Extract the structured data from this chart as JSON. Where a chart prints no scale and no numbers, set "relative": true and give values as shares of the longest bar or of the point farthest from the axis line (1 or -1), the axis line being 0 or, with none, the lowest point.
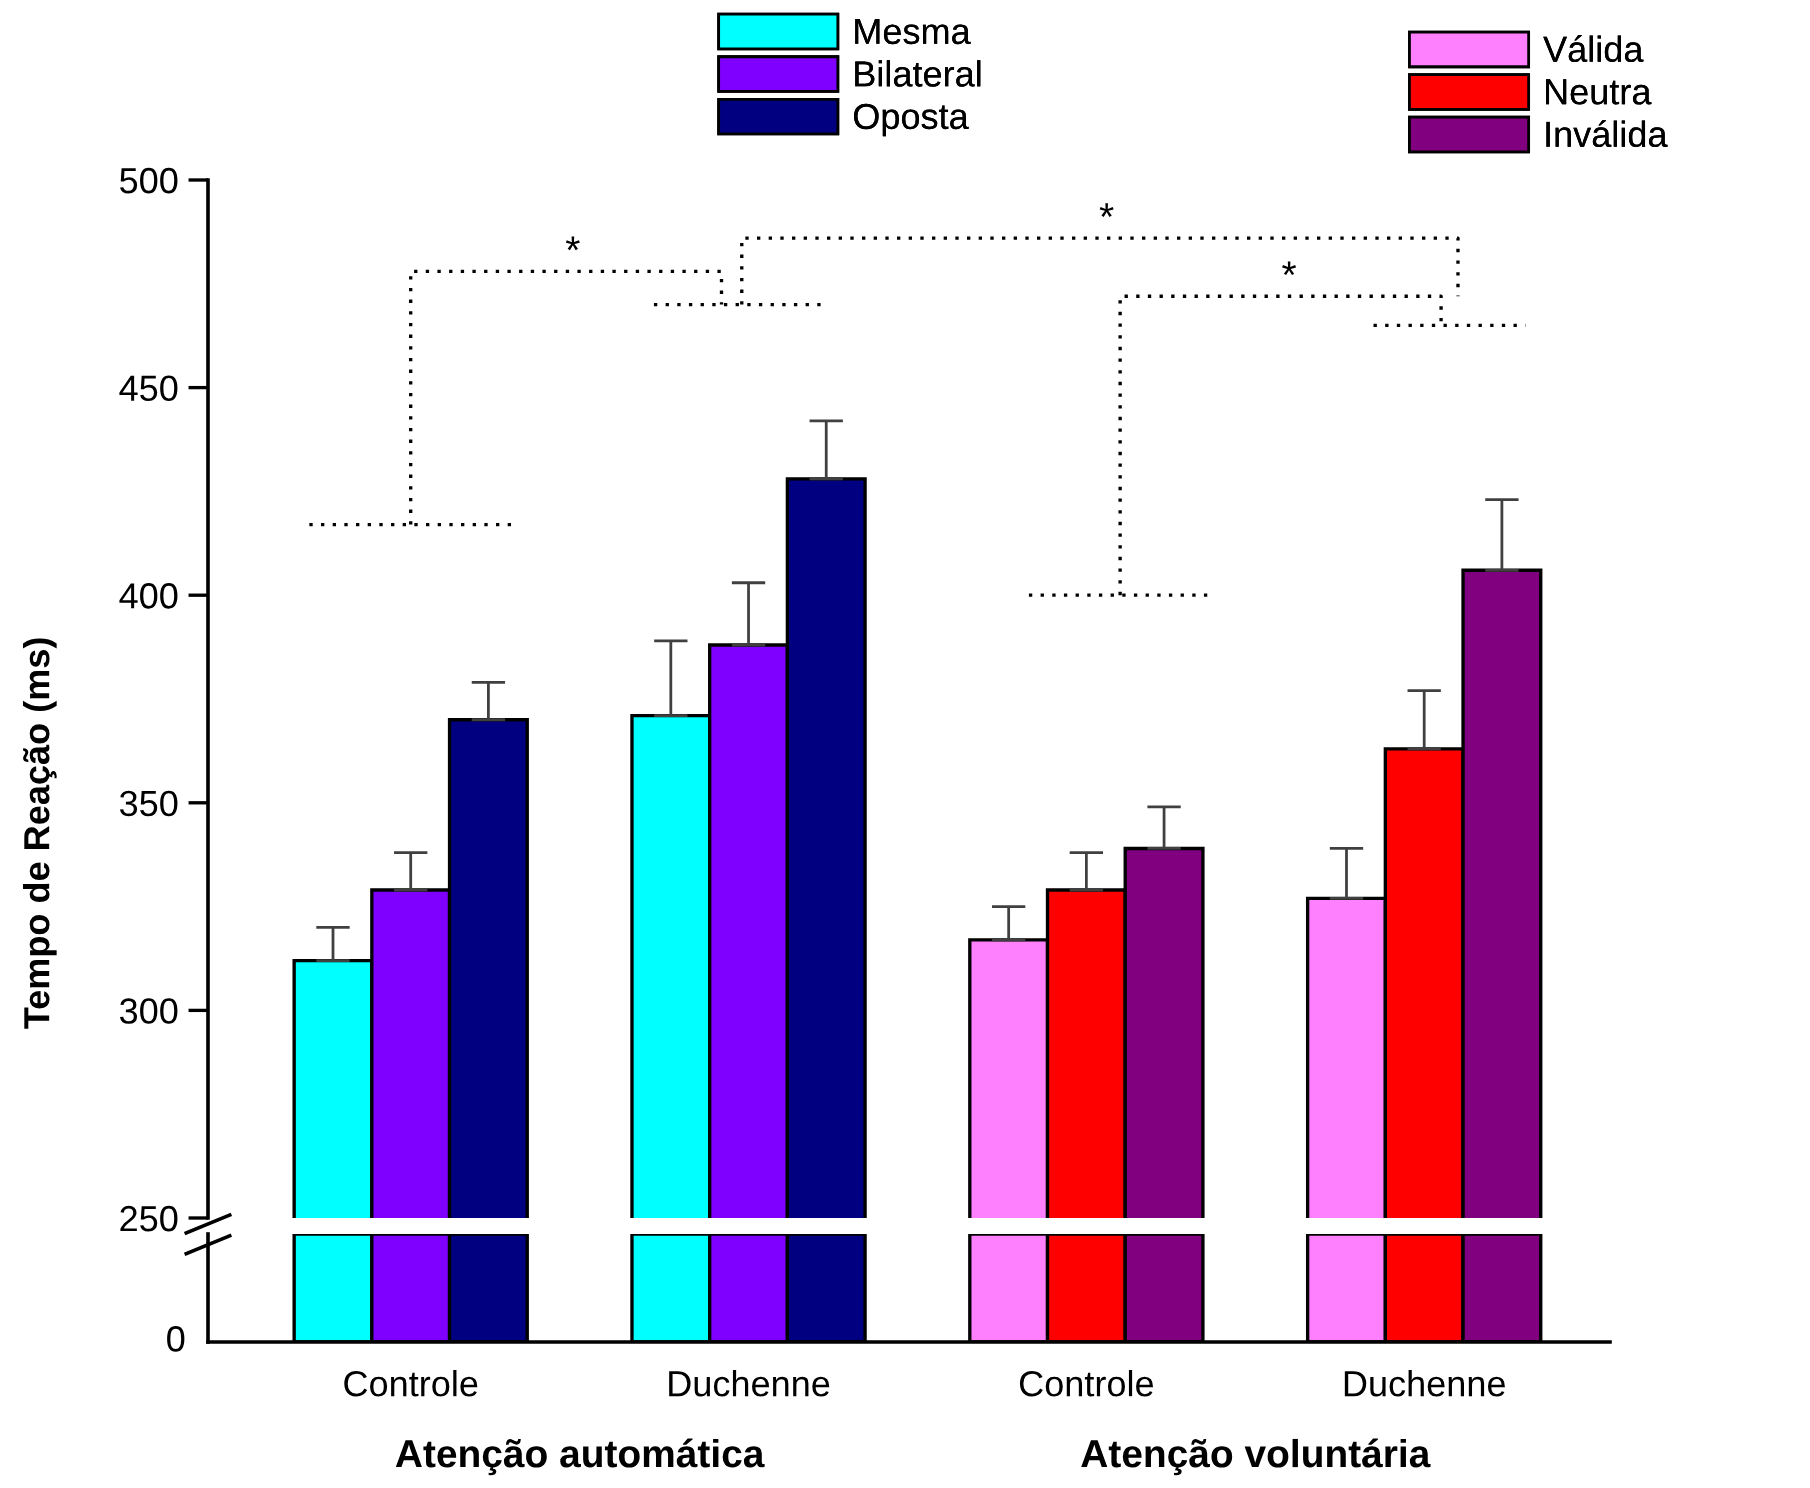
{
  "chart_data": [
    {
      "type": "bar",
      "ylabel": "Tempo de Reação (ms)",
      "categories": [
        "Controle",
        "Duchenne",
        "Controle",
        "Duchenne"
      ],
      "ylim": [
        250,
        500
      ],
      "yticks": [
        250,
        300,
        350,
        400,
        450,
        500
      ],
      "legend": "top",
      "grid": false,
      "series": [
        {
          "name": "Mesma",
          "color": "#00ffff",
          "values": [
            312,
            371,
            null,
            null
          ],
          "errors": [
            [
              312,
              320
            ],
            [
              371,
              389
            ],
            null,
            null
          ]
        },
        {
          "name": "Bilateral",
          "color": "#8000ff",
          "values": [
            329,
            388,
            null,
            null
          ],
          "errors": [
            [
              329,
              338
            ],
            [
              388,
              403
            ],
            null,
            null
          ]
        },
        {
          "name": "Oposta",
          "color": "#000080",
          "values": [
            370,
            428,
            null,
            null
          ],
          "errors": [
            [
              370,
              379
            ],
            [
              428,
              442
            ],
            null,
            null
          ]
        },
        {
          "name": "Válida",
          "color": "#ff80ff",
          "values": [
            null,
            null,
            317,
            327
          ],
          "errors": [
            null,
            null,
            [
              317,
              325
            ],
            [
              327,
              339
            ]
          ]
        },
        {
          "name": "Neutra",
          "color": "#ff0000",
          "values": [
            null,
            null,
            329,
            363
          ],
          "errors": [
            null,
            null,
            [
              329,
              338
            ],
            [
              363,
              377
            ]
          ]
        },
        {
          "name": "Inválida",
          "color": "#800080",
          "values": [
            null,
            null,
            339,
            406
          ],
          "errors": [
            null,
            null,
            [
              339,
              349
            ],
            [
              406,
              423
            ]
          ]
        }
      ],
      "annotations": [
        "*",
        "*",
        "*",
        "Atenção automática",
        "Atenção voluntária"
      ]
    },
    {
      "type": "bar",
      "relative": true,
      "categories": [
        null,
        null,
        null,
        null
      ],
      "series": [
        {
          "color": "#00ffff",
          "values": [
            1,
            1,
            null,
            null
          ]
        },
        {
          "color": "#8000ff",
          "values": [
            1,
            1,
            null,
            null
          ]
        },
        {
          "color": "#000080",
          "values": [
            1,
            1,
            null,
            null
          ]
        },
        {
          "color": "#ff80ff",
          "values": [
            null,
            null,
            1,
            1
          ]
        },
        {
          "color": "#ff0000",
          "values": [
            null,
            null,
            1,
            1
          ]
        },
        {
          "color": "#800080",
          "values": [
            null,
            null,
            1,
            1
          ]
        }
      ],
      "annotations": [
        "0"
      ]
    }
  ]
}
